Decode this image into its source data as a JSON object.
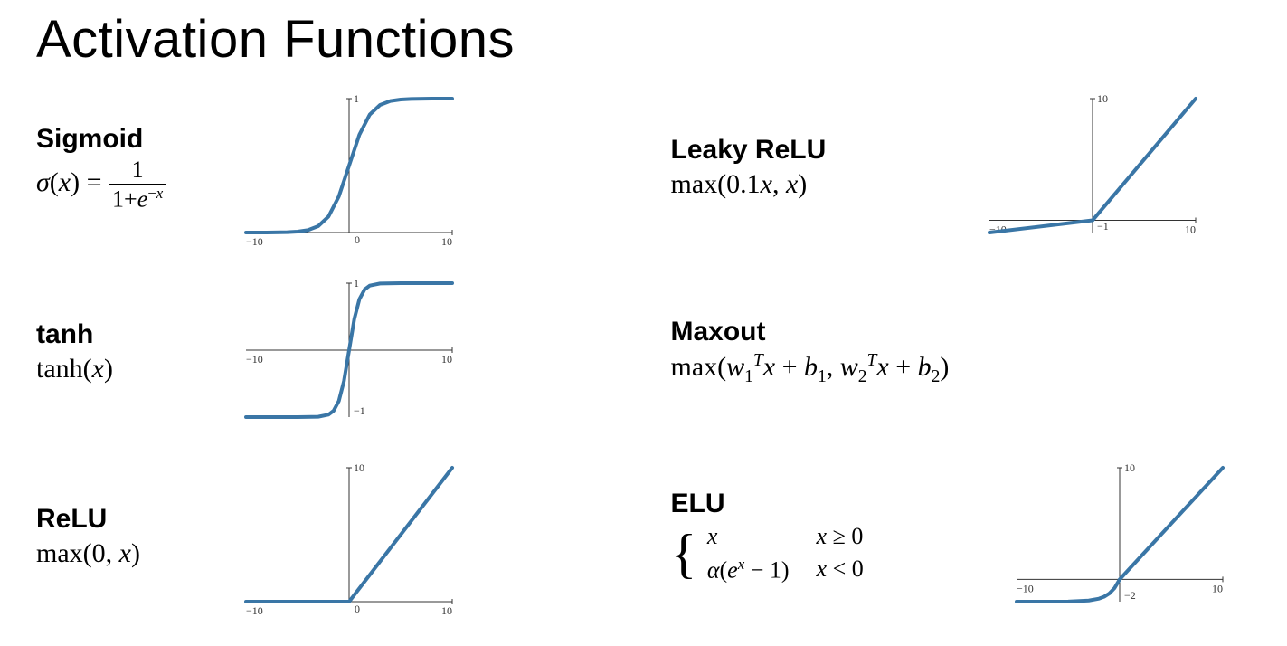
{
  "title": "Activation Functions",
  "styling": {
    "title_fontsize": 58,
    "title_fontweight": 400,
    "name_fontsize": 30,
    "name_fontweight": 700,
    "formula_fontsize": 30,
    "formula_font": "Cambria Math / Times New Roman serif",
    "line_color": "#3a76a6",
    "line_width": 4,
    "axis_color": "#333333",
    "tick_fontsize": 12,
    "background_color": "#ffffff"
  },
  "functions": {
    "sigmoid": {
      "name": "Sigmoid",
      "formula_plain": "σ(x) = 1 / (1 + e^{-x})",
      "chart": {
        "type": "line",
        "xlim": [
          -10,
          10
        ],
        "ylim": [
          0,
          1
        ],
        "xticks": [
          -10,
          10
        ],
        "yticks": [
          0,
          1
        ],
        "x_axis_at_y": 0,
        "y_axis_at_x": 0,
        "points": [
          [
            -10,
            5e-05
          ],
          [
            -8,
            0.00034
          ],
          [
            -6,
            0.00247
          ],
          [
            -5,
            0.00669
          ],
          [
            -4,
            0.01799
          ],
          [
            -3,
            0.04743
          ],
          [
            -2,
            0.1192
          ],
          [
            -1,
            0.26894
          ],
          [
            0,
            0.5
          ],
          [
            1,
            0.73106
          ],
          [
            2,
            0.8808
          ],
          [
            3,
            0.95257
          ],
          [
            4,
            0.98201
          ],
          [
            5,
            0.99331
          ],
          [
            6,
            0.99753
          ],
          [
            8,
            0.99966
          ],
          [
            10,
            0.99995
          ]
        ]
      }
    },
    "tanh": {
      "name": "tanh",
      "formula_plain": "tanh(x)",
      "chart": {
        "type": "line",
        "xlim": [
          -10,
          10
        ],
        "ylim": [
          -1,
          1
        ],
        "xticks": [
          -10,
          10
        ],
        "yticks": [
          -1,
          1
        ],
        "x_axis_at_y": 0,
        "y_axis_at_x": 0,
        "points": [
          [
            -10,
            -1
          ],
          [
            -5,
            -0.9999
          ],
          [
            -3,
            -0.9951
          ],
          [
            -2,
            -0.964
          ],
          [
            -1.5,
            -0.9051
          ],
          [
            -1,
            -0.7616
          ],
          [
            -0.5,
            -0.4621
          ],
          [
            0,
            0
          ],
          [
            0.5,
            0.4621
          ],
          [
            1,
            0.7616
          ],
          [
            1.5,
            0.9051
          ],
          [
            2,
            0.964
          ],
          [
            3,
            0.9951
          ],
          [
            5,
            0.9999
          ],
          [
            10,
            1
          ]
        ]
      }
    },
    "relu": {
      "name": "ReLU",
      "formula_plain": "max(0, x)",
      "chart": {
        "type": "line",
        "xlim": [
          -10,
          10
        ],
        "ylim": [
          0,
          10
        ],
        "xticks": [
          -10,
          10
        ],
        "yticks": [
          0,
          10
        ],
        "x_axis_at_y": 0,
        "y_axis_at_x": 0,
        "points": [
          [
            -10,
            0
          ],
          [
            0,
            0
          ],
          [
            10,
            10
          ]
        ]
      }
    },
    "leaky_relu": {
      "name": "Leaky ReLU",
      "formula_plain": "max(0.1x, x)",
      "chart": {
        "type": "line",
        "xlim": [
          -10,
          10
        ],
        "ylim": [
          -1,
          10
        ],
        "xticks": [
          -10,
          10
        ],
        "yticks": [
          -1,
          10
        ],
        "x_axis_at_y": 0,
        "y_axis_at_x": 0,
        "points": [
          [
            -10,
            -1
          ],
          [
            0,
            0
          ],
          [
            10,
            10
          ]
        ]
      }
    },
    "maxout": {
      "name": "Maxout",
      "formula_plain": "max(w₁ᵀx + b₁, w₂ᵀx + b₂)",
      "chart": null
    },
    "elu": {
      "name": "ELU",
      "formula_plain": "{ x if x ≥ 0 ; α(e^x − 1) if x < 0 }",
      "alpha": 2,
      "chart": {
        "type": "line",
        "xlim": [
          -10,
          10
        ],
        "ylim": [
          -2,
          10
        ],
        "xticks": [
          -10,
          10
        ],
        "yticks": [
          -2,
          10
        ],
        "x_axis_at_y": 0,
        "y_axis_at_x": 0,
        "points": [
          [
            -10,
            -2
          ],
          [
            -5,
            -1.987
          ],
          [
            -3,
            -1.9
          ],
          [
            -2,
            -1.729
          ],
          [
            -1.5,
            -1.554
          ],
          [
            -1,
            -1.264
          ],
          [
            -0.5,
            -0.787
          ],
          [
            0,
            0
          ],
          [
            10,
            10
          ]
        ]
      }
    }
  }
}
